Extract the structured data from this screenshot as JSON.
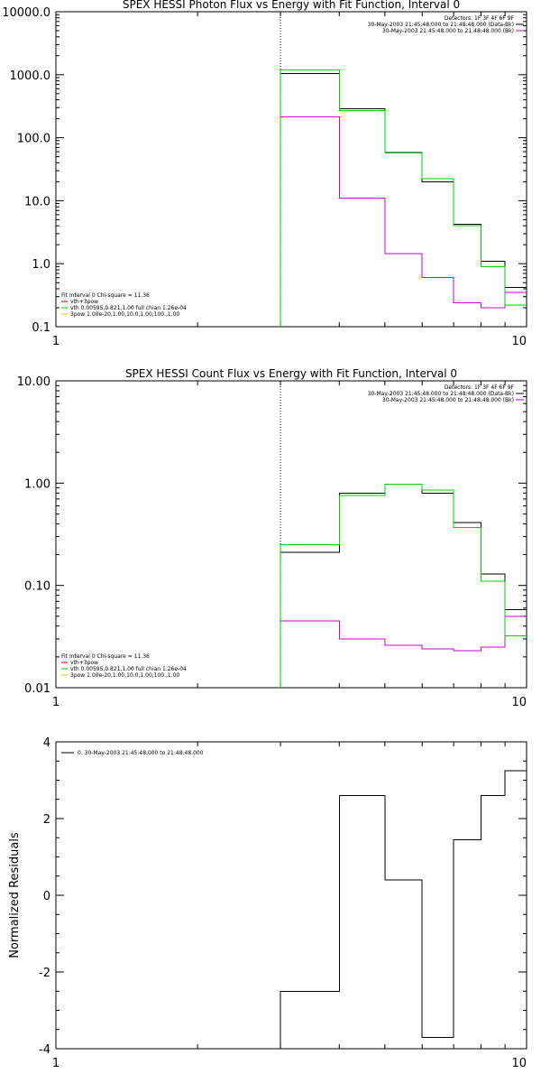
{
  "chart_data": [
    {
      "type": "line",
      "title": "SPEX HESSI Photon Flux vs Energy with Fit Function, Interval 0",
      "xscale": "log",
      "yscale": "log",
      "xlim": [
        1,
        10
      ],
      "ylim": [
        0.1,
        10000
      ],
      "x_ticks": [
        "1",
        "10"
      ],
      "y_ticks": [
        "0.1",
        "1.0",
        "10.0",
        "100.0",
        "1000.0",
        "10000.0"
      ],
      "ylabel": "",
      "vline_x": 3.0,
      "bin_edges": [
        3.0,
        4.0,
        5.0,
        6.0,
        7.0,
        8.0,
        9.0,
        10.0
      ],
      "series": [
        {
          "name": "30-May-2003 21:45:48.000 to 21:48:48.000 (Data-Bk)",
          "color": "#000000",
          "values": [
            1050,
            290,
            58,
            20,
            4.2,
            1.1,
            0.42
          ]
        },
        {
          "name": "30-May-2003 21:45:48.000 to 21:48:48.000 (Bk)",
          "color": "#cc00cc",
          "values": [
            215,
            11,
            1.45,
            0.6,
            0.24,
            0.2,
            0.35
          ]
        },
        {
          "color": "#00cc00",
          "values": [
            1200,
            270,
            57,
            22.5,
            4.0,
            0.9,
            0.22
          ]
        }
      ],
      "legend_top": [
        {
          "text": "Detectors: 1F 3F 4F 6F 9F",
          "color": "#000000"
        },
        {
          "text": "30-May-2003 21:45:48.000 to 21:48:48.000 (Data-Bk)",
          "color": "#000000"
        },
        {
          "text": "30-May-2003 21:45:48.000 to 21:48:48.000 (Bk)",
          "color": "#cc00cc"
        }
      ],
      "legend_bottom": [
        {
          "text": "Fit Interval 0   Chi-square = 11.36",
          "color": "#000000"
        },
        {
          "text": "vth+3pow",
          "color": "#cc0000"
        },
        {
          "text": "vth 0.00595,0.821,1.00  full chian 1.26e-04",
          "color": "#00cc00"
        },
        {
          "text": "3pow 1.00e-20,1.00,10.0,1.00,100.,1.00",
          "color": "#cccc00"
        }
      ]
    },
    {
      "type": "line",
      "title": "SPEX HESSI Count Flux vs Energy with Fit Function, Interval 0",
      "xscale": "log",
      "yscale": "log",
      "xlim": [
        1,
        10
      ],
      "ylim": [
        0.01,
        10
      ],
      "x_ticks": [
        "1",
        "10"
      ],
      "y_ticks": [
        "0.01",
        "0.10",
        "1.00",
        "10.00"
      ],
      "ylabel": "",
      "vline_x": 3.0,
      "bin_edges": [
        3.0,
        4.0,
        5.0,
        6.0,
        7.0,
        8.0,
        9.0,
        10.0
      ],
      "series": [
        {
          "name": "30-May-2003 21:45:48.000 to 21:48:48.000 (Data-Bk)",
          "color": "#000000",
          "values": [
            0.21,
            0.8,
            0.98,
            0.8,
            0.41,
            0.13,
            0.058
          ]
        },
        {
          "name": "30-May-2003 21:45:48.000 to 21:48:48.000 (Bk)",
          "color": "#cc00cc",
          "values": [
            0.045,
            0.03,
            0.026,
            0.024,
            0.023,
            0.025,
            0.05
          ]
        },
        {
          "color": "#00cc00",
          "values": [
            0.25,
            0.76,
            0.98,
            0.86,
            0.37,
            0.11,
            0.032
          ]
        }
      ],
      "legend_top": [
        {
          "text": "Detectors: 1F 3F 4F 6F 9F",
          "color": "#000000"
        },
        {
          "text": "30-May-2003 21:45:48.000 to 21:48:48.000 (Data-Bk)",
          "color": "#000000"
        },
        {
          "text": "30-May-2003 21:45:48.000 to 21:48:48.000 (Bk)",
          "color": "#cc00cc"
        }
      ],
      "legend_bottom": [
        {
          "text": "Fit Interval 0   Chi-square = 11.36",
          "color": "#000000"
        },
        {
          "text": "vth+3pow",
          "color": "#cc0000"
        },
        {
          "text": "vth 0.00595,0.821,1.00  full chian 1.26e-04",
          "color": "#00cc00"
        },
        {
          "text": "3pow 1.00e-20,1.00,10.0,1.00,100.,1.00",
          "color": "#cccc00"
        }
      ]
    },
    {
      "type": "line",
      "title": "",
      "xscale": "log",
      "yscale": "linear",
      "xlim": [
        1,
        10
      ],
      "ylim": [
        -4,
        4
      ],
      "x_ticks": [
        "1",
        "10"
      ],
      "y_ticks": [
        "-4",
        "-2",
        "0",
        "2",
        "4"
      ],
      "ylabel": "Normalized Residuals",
      "bin_edges": [
        3.0,
        4.0,
        5.0,
        6.0,
        7.0,
        8.0,
        9.0,
        10.0
      ],
      "series": [
        {
          "name": "0. 30-May-2003 21:45:48.000 to 21:48:48.000",
          "color": "#000000",
          "values": [
            -2.5,
            2.6,
            0.4,
            -3.7,
            1.45,
            2.6,
            3.25
          ]
        }
      ],
      "legend_top": [
        {
          "text": "0. 30-May-2003 21:45:48.000 to 21:48:48.000",
          "color": "#000000"
        }
      ]
    }
  ]
}
